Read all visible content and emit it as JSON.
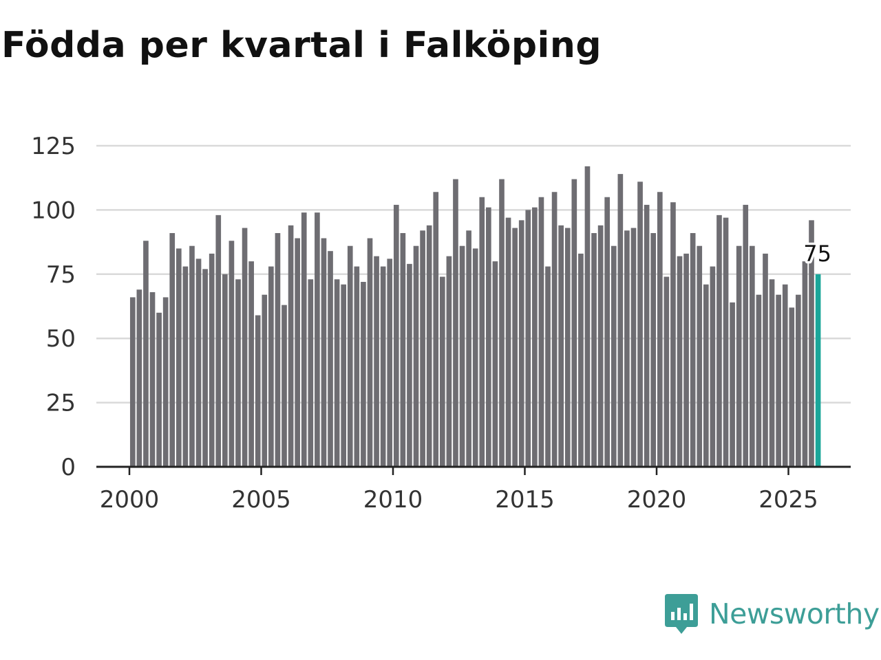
{
  "chart_data": {
    "type": "bar",
    "title": "Födda per kvartal i Falköping",
    "xlabel": "",
    "ylabel": "",
    "ylim": [
      0,
      125
    ],
    "yticks": [
      "0",
      "25",
      "50",
      "75",
      "100",
      "125"
    ],
    "xticks": [
      "2000",
      "2005",
      "2010",
      "2015",
      "2020",
      "2025"
    ],
    "grid": true,
    "x_start": 2000,
    "periods_per_year": 4,
    "values": [
      66,
      69,
      88,
      68,
      60,
      66,
      91,
      85,
      78,
      86,
      81,
      77,
      83,
      98,
      75,
      88,
      73,
      93,
      80,
      59,
      67,
      78,
      91,
      63,
      94,
      89,
      99,
      73,
      99,
      89,
      84,
      73,
      71,
      86,
      78,
      72,
      89,
      82,
      78,
      81,
      102,
      91,
      79,
      86,
      92,
      94,
      107,
      74,
      82,
      112,
      86,
      92,
      85,
      105,
      101,
      80,
      112,
      97,
      93,
      96,
      100,
      101,
      105,
      78,
      107,
      94,
      93,
      112,
      83,
      117,
      91,
      94,
      105,
      86,
      114,
      92,
      93,
      111,
      102,
      91,
      107,
      74,
      103,
      82,
      83,
      91,
      86,
      71,
      78,
      98,
      97,
      64,
      86,
      102,
      86,
      67,
      83,
      73,
      67,
      71,
      62,
      67,
      80,
      96,
      75
    ],
    "highlight_index": 104,
    "highlight_label": "75",
    "bar_color": "#6e6d72",
    "highlight_color": "#1aa69a",
    "grid_color": "#d9d9d9",
    "axis_color": "#222222",
    "tick_text_color": "#333333"
  },
  "brand": {
    "name": "Newsworthy",
    "color": "#3d9e97",
    "icon": "newsworthy-logo-icon"
  }
}
